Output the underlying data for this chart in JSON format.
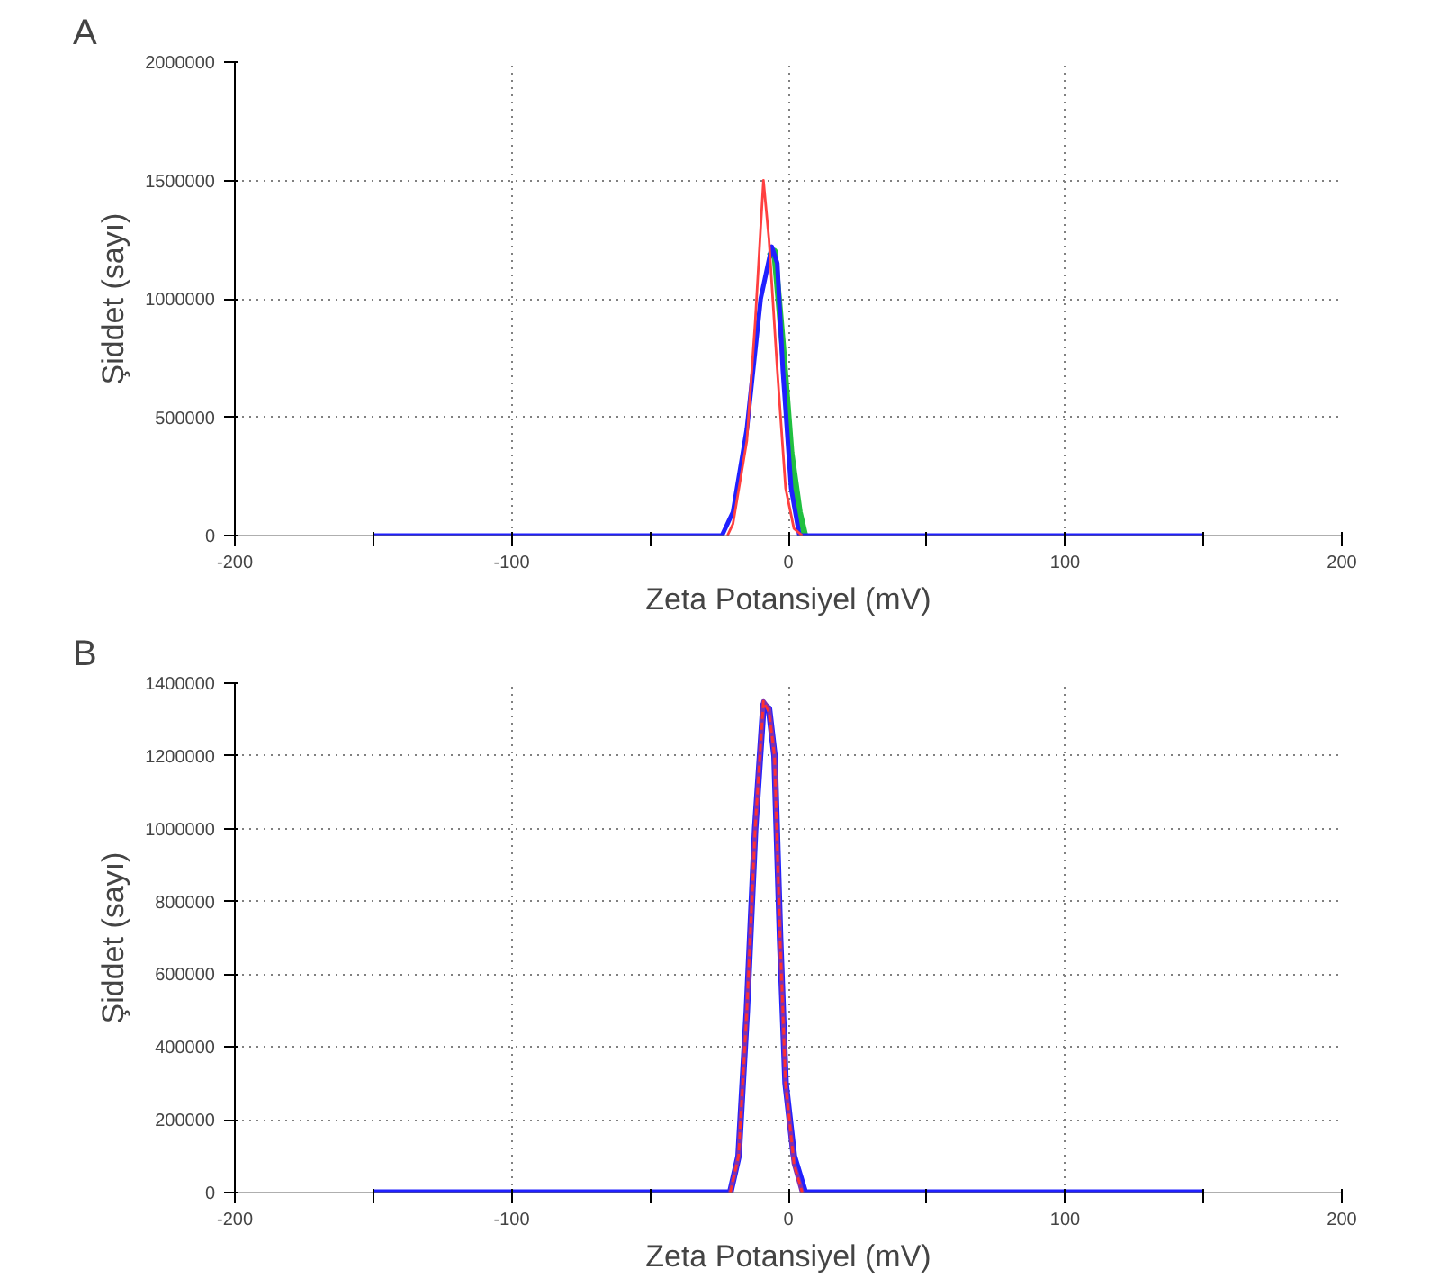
{
  "chart_data": [
    {
      "type": "line",
      "title": "A",
      "xlabel": "Zeta Potansiyel (mV)",
      "ylabel": "Şiddet (sayı)",
      "xlim": [
        -200,
        200
      ],
      "ylim": [
        0,
        2000000
      ],
      "xticks": [
        -200,
        {
          "value": -150,
          "label": null
        },
        -100,
        {
          "value": -50,
          "label": null
        },
        0,
        {
          "value": 50,
          "label": null
        },
        100,
        {
          "value": 150,
          "label": null
        },
        200
      ],
      "yticks": [
        0,
        500000,
        1000000,
        1500000,
        2000000
      ],
      "grid": true,
      "line_style": "solid",
      "series": [
        {
          "color": "#20c040",
          "x": [
            -7,
            -5,
            -2,
            1,
            4,
            6
          ],
          "values": [
            1180000,
            1200000,
            800000,
            350000,
            100000,
            0
          ]
        },
        {
          "color": "#2020ff",
          "x": [
            -150,
            -24,
            -20,
            -15,
            -10,
            -6,
            -4,
            -2,
            1,
            4,
            150
          ],
          "values": [
            0,
            0,
            100000,
            450000,
            1000000,
            1220000,
            1150000,
            700000,
            200000,
            0,
            0
          ]
        },
        {
          "color": "#ff4040",
          "x": [
            -22,
            -20,
            -15,
            -12,
            -9,
            -7,
            -4,
            -1,
            2,
            5
          ],
          "values": [
            0,
            50000,
            400000,
            900000,
            1500000,
            1250000,
            700000,
            200000,
            30000,
            0
          ]
        }
      ]
    },
    {
      "type": "line",
      "title": "B",
      "xlabel": "Zeta Potansiyel (mV)",
      "ylabel": "Şiddet (sayı)",
      "xlim": [
        -200,
        200
      ],
      "ylim": [
        0,
        1400000
      ],
      "xticks": [
        -200,
        {
          "value": -150,
          "label": null
        },
        -100,
        {
          "value": -50,
          "label": null
        },
        0,
        {
          "value": 50,
          "label": null
        },
        100,
        {
          "value": 150,
          "label": null
        },
        200
      ],
      "yticks": [
        0,
        200000,
        400000,
        600000,
        800000,
        1000000,
        1200000,
        1400000
      ],
      "grid": true,
      "series": [
        {
          "color": "#2020ff",
          "line_style": "solid",
          "x": [
            -150,
            -21,
            -18,
            -15,
            -12,
            -9,
            -7,
            -5,
            -3,
            -1,
            2,
            6,
            150
          ],
          "values": [
            0,
            0,
            100000,
            500000,
            1000000,
            1340000,
            1330000,
            1200000,
            700000,
            300000,
            100000,
            0,
            0
          ]
        },
        {
          "color": "#8030b0",
          "line_style": "solid",
          "x": [
            -21,
            -18,
            -15,
            -12,
            -9,
            -7,
            -5,
            -3,
            -1,
            2,
            5
          ],
          "values": [
            0,
            100000,
            500000,
            1000000,
            1350000,
            1330000,
            1200000,
            700000,
            300000,
            80000,
            0
          ]
        },
        {
          "color": "#ff3030",
          "line_style": "dashed",
          "x": [
            -21,
            -18,
            -15,
            -12,
            -9,
            -7,
            -5,
            -3,
            -1,
            2,
            5
          ],
          "values": [
            0,
            100000,
            500000,
            1000000,
            1350000,
            1320000,
            1200000,
            700000,
            300000,
            80000,
            0
          ]
        }
      ]
    }
  ]
}
